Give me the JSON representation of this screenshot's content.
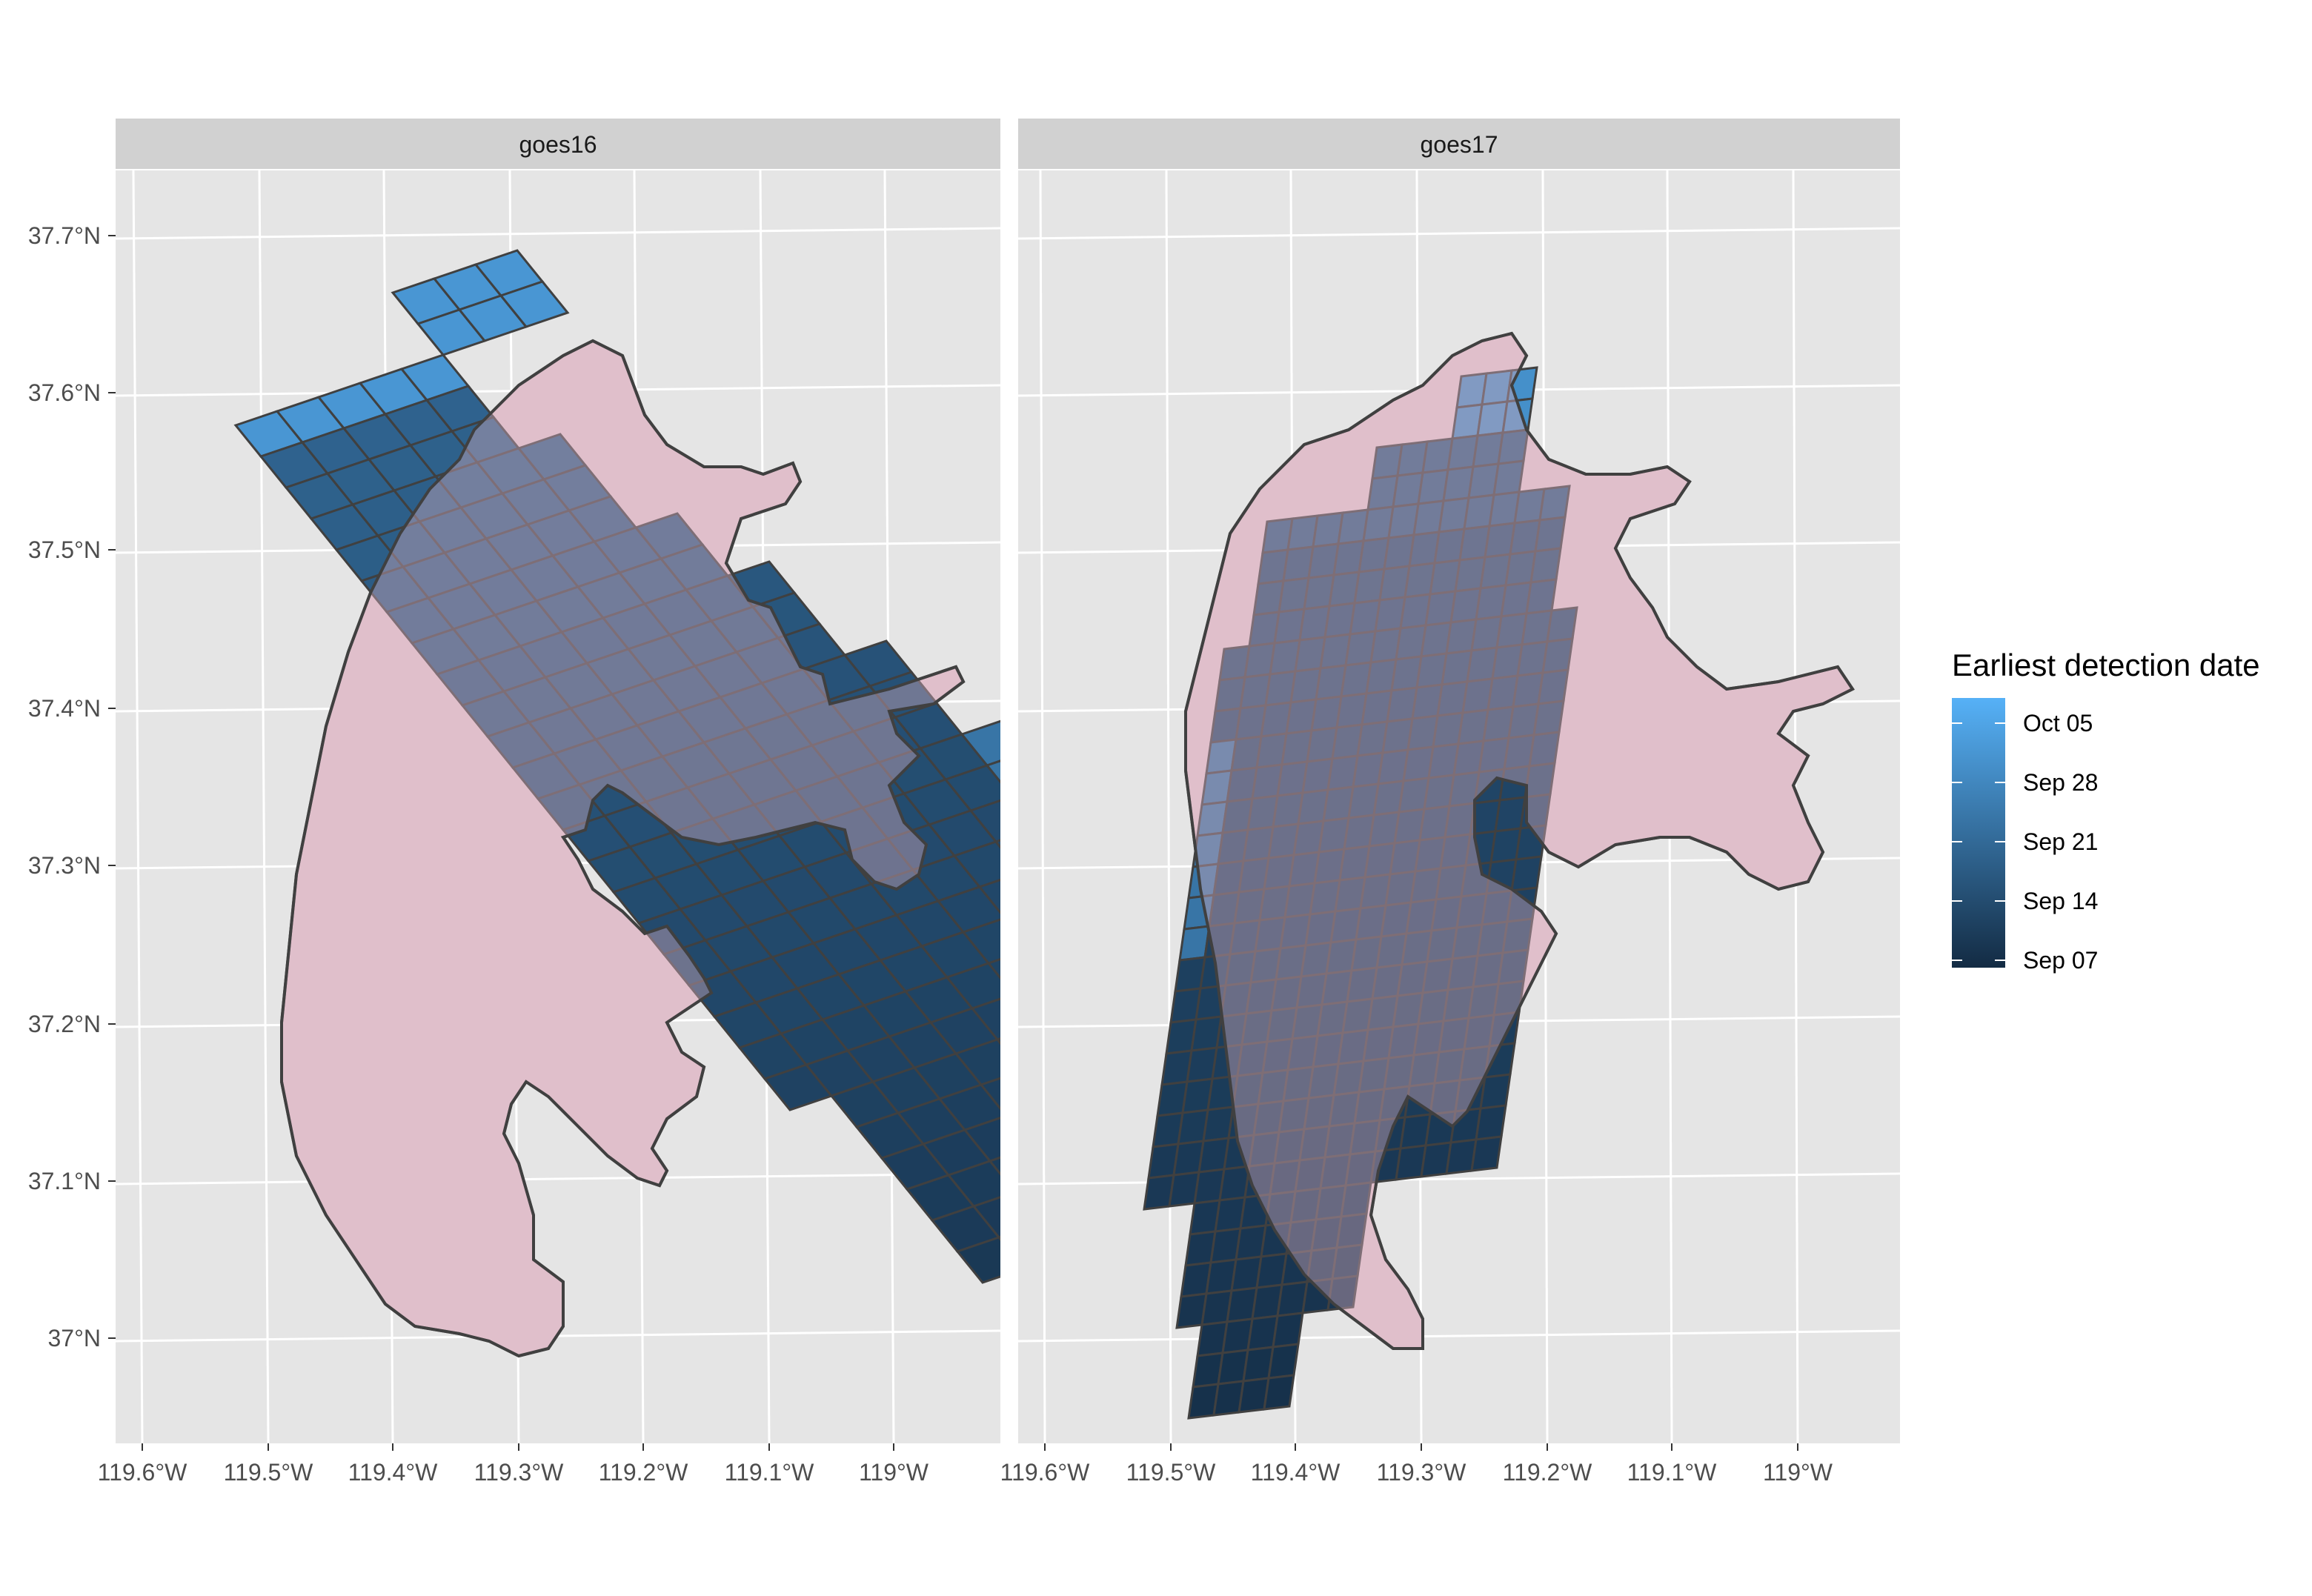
{
  "colors": {
    "panel_bg": "#e5e5e5",
    "strip_bg": "#d1d1d1",
    "grid": "#ffffff",
    "fire_fill": "#f2d3da",
    "cell_border": "#404040",
    "scale_low": "#132b43",
    "scale_high": "#56b1f7"
  },
  "chart_data": {
    "type": "faceted-map",
    "facets": [
      "goes16",
      "goes17"
    ],
    "x_ticks": [
      "119.6°W",
      "119.5°W",
      "119.4°W",
      "119.3°W",
      "119.2°W",
      "119.1°W",
      "119°W"
    ],
    "y_ticks": [
      "37.7°N",
      "37.6°N",
      "37.5°N",
      "37.4°N",
      "37.3°N",
      "37.2°N",
      "37.1°N",
      "37°N"
    ],
    "legend": {
      "title": "Earliest detection date",
      "labels": [
        "Oct 05",
        "Sep 28",
        "Sep 21",
        "Sep 14",
        "Sep 07"
      ]
    },
    "grid": true
  }
}
